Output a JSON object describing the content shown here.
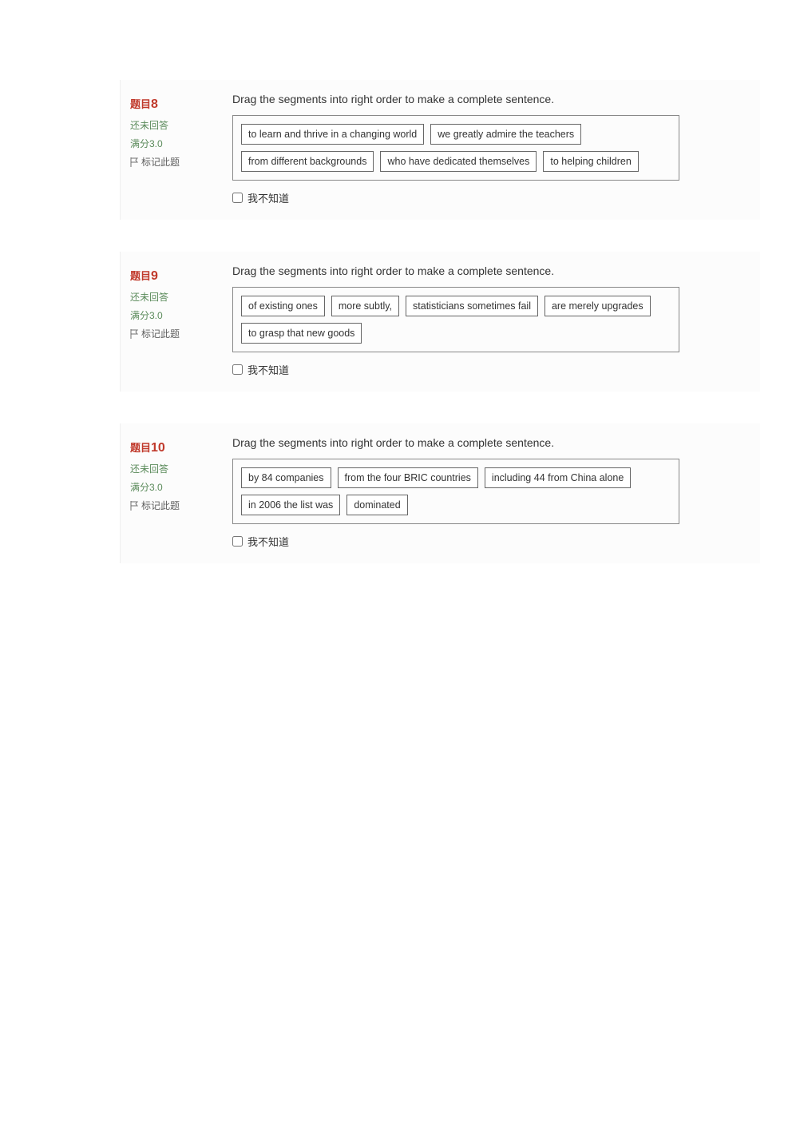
{
  "questions": [
    {
      "qlabel": "题目",
      "qnum": "8",
      "status": "还未回答",
      "score": "满分3.0",
      "flag": "标记此题",
      "instruction": "Drag the segments into right order to make a complete sentence.",
      "segments": [
        "to learn and thrive in a changing world",
        "we greatly admire the teachers",
        "from different backgrounds",
        "who have dedicated themselves",
        "to helping children"
      ],
      "dont_know": "我不知道"
    },
    {
      "qlabel": "题目",
      "qnum": "9",
      "status": "还未回答",
      "score": "满分3.0",
      "flag": "标记此题",
      "instruction": "Drag the segments into right order to make a complete sentence.",
      "segments": [
        "of existing ones",
        "more subtly,",
        "statisticians sometimes fail",
        "are merely upgrades",
        "to grasp that new goods"
      ],
      "dont_know": "我不知道"
    },
    {
      "qlabel": "题目",
      "qnum": "10",
      "status": "还未回答",
      "score": "满分3.0",
      "flag": "标记此题",
      "instruction": "Drag the segments into right order to make a complete sentence.",
      "segments": [
        "by 84 companies",
        "from the four BRIC countries",
        "including 44 from China alone",
        "in 2006 the list was",
        "dominated"
      ],
      "dont_know": "我不知道"
    }
  ],
  "colors": {
    "qnum_color": "#c0392b",
    "status_color": "#5a8a5a",
    "segment_border": "#666666",
    "box_border": "#888888"
  }
}
